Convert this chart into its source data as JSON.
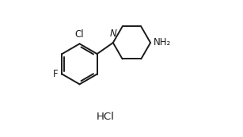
{
  "background_color": "#ffffff",
  "line_color": "#1a1a1a",
  "line_width": 1.4,
  "font_size_labels": 8.5,
  "font_size_hcl": 9.5,
  "label_Cl": "Cl",
  "label_F": "F",
  "label_N": "N",
  "label_HCl": "HCl",
  "label_NH2": "NH₂",
  "figsize": [
    3.07,
    1.73
  ],
  "dpi": 100
}
